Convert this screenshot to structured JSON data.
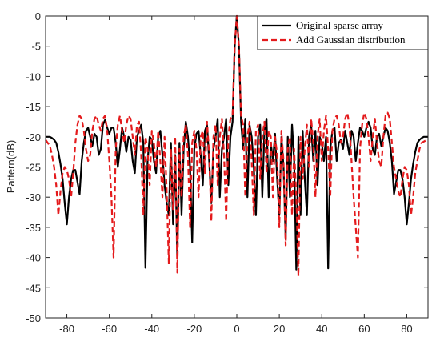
{
  "chart_data": {
    "type": "line",
    "ylabel": "Pattern(dB)",
    "x": [
      -90,
      -89,
      -88,
      -87,
      -86,
      -85,
      -84,
      -83,
      -82,
      -81,
      -80,
      -79,
      -78,
      -77,
      -76,
      -75,
      -74,
      -73,
      -72,
      -71,
      -70,
      -69,
      -68,
      -67,
      -66,
      -65,
      -64,
      -63,
      -62,
      -61,
      -60,
      -59,
      -58,
      -57,
      -56,
      -55,
      -54,
      -53,
      -52,
      -51,
      -50,
      -49,
      -48,
      -47,
      -46,
      -45,
      -44,
      -43,
      -42,
      -41,
      -40,
      -39,
      -38,
      -37,
      -36,
      -35,
      -34,
      -33,
      -32,
      -31,
      -30,
      -29,
      -28,
      -27,
      -26,
      -25,
      -24,
      -23,
      -22,
      -21,
      -20,
      -19,
      -18,
      -17,
      -16,
      -15,
      -14,
      -13,
      -12,
      -11,
      -10,
      -9,
      -8,
      -7,
      -6,
      -5,
      -4,
      -3,
      -2,
      -1,
      0,
      1,
      2,
      3,
      4,
      5,
      6,
      7,
      8,
      9,
      10,
      11,
      12,
      13,
      14,
      15,
      16,
      17,
      18,
      19,
      20,
      21,
      22,
      23,
      24,
      25,
      26,
      27,
      28,
      29,
      30,
      31,
      32,
      33,
      34,
      35,
      36,
      37,
      38,
      39,
      40,
      41,
      42,
      43,
      44,
      45,
      46,
      47,
      48,
      49,
      50,
      51,
      52,
      53,
      54,
      55,
      56,
      57,
      58,
      59,
      60,
      61,
      62,
      63,
      64,
      65,
      66,
      67,
      68,
      69,
      70,
      71,
      72,
      73,
      74,
      75,
      76,
      77,
      78,
      79,
      80,
      81,
      82,
      83,
      84,
      85,
      86,
      87,
      88,
      89,
      90
    ],
    "series": [
      {
        "name": "Original sparse array",
        "color": "#000000",
        "linestyle": "solid",
        "values": [
          -20,
          -20,
          -20,
          -20.2,
          -20.5,
          -21,
          -22.5,
          -24.5,
          -27,
          -31,
          -34.5,
          -30,
          -27,
          -25.5,
          -25.5,
          -27.5,
          -29.5,
          -24,
          -21,
          -19,
          -18.5,
          -20,
          -21.5,
          -19.5,
          -20,
          -23,
          -22,
          -18,
          -17.2,
          -18.5,
          -19.5,
          -18.5,
          -18.5,
          -21,
          -25,
          -22,
          -18.5,
          -20,
          -22.5,
          -20,
          -20.5,
          -24,
          -26,
          -20,
          -19,
          -18,
          -21,
          -41.7,
          -24,
          -20,
          -20.5,
          -24,
          -26,
          -20,
          -19,
          -23,
          -28,
          -31,
          -33,
          -21,
          -34.5,
          -23,
          -40,
          -21,
          -33,
          -22,
          -17.5,
          -20,
          -25,
          -37.5,
          -22,
          -19.5,
          -19,
          -23,
          -28,
          -19,
          -18,
          -24,
          -31,
          -22,
          -20,
          -17,
          -30,
          -22,
          -20,
          -17,
          -28,
          -20,
          -17.5,
          -5,
          0,
          -5,
          -17.5,
          -22,
          -17,
          -30,
          -18,
          -20,
          -25,
          -33,
          -20,
          -18,
          -30,
          -19,
          -17,
          -30,
          -21,
          -24,
          -19.5,
          -27,
          -33,
          -20,
          -25,
          -37,
          -20,
          -30,
          -18,
          -24,
          -42,
          -20,
          -33,
          -19,
          -27,
          -33,
          -20,
          -18,
          -24,
          -19,
          -28,
          -20,
          -21,
          -24,
          -20,
          -41.8,
          -22,
          -19,
          -18.5,
          -24,
          -21,
          -20.5,
          -22,
          -19,
          -21,
          -23,
          -19,
          -20,
          -24,
          -21,
          -18.5,
          -19,
          -20,
          -18.5,
          -17.5,
          -18.5,
          -22,
          -23,
          -20,
          -19.5,
          -21.5,
          -20,
          -18.5,
          -19,
          -21,
          -24,
          -29.5,
          -27.5,
          -25.5,
          -25.5,
          -27,
          -30,
          -34.5,
          -31,
          -27,
          -24.5,
          -22.5,
          -21,
          -20.5,
          -20.2,
          -20,
          -20,
          -20
        ]
      },
      {
        "name": "Add Gaussian distribution",
        "color": "#e41a1c",
        "linestyle": "dashed",
        "values": [
          -20.5,
          -21,
          -21.5,
          -23,
          -25,
          -28,
          -33,
          -29,
          -26,
          -25,
          -25.5,
          -27,
          -30,
          -26,
          -21,
          -18,
          -16.5,
          -17,
          -19,
          -22,
          -24,
          -23,
          -19,
          -17,
          -16.5,
          -18,
          -19,
          -17,
          -16.5,
          -19,
          -24,
          -30,
          -40,
          -22,
          -18,
          -16.5,
          -19,
          -21,
          -18,
          -16.5,
          -17,
          -20,
          -23,
          -18,
          -17.5,
          -23,
          -33,
          -20,
          -22,
          -28,
          -19,
          -21,
          -25,
          -19,
          -24,
          -30,
          -20,
          -29,
          -41,
          -22,
          -32,
          -20,
          -42.5,
          -22,
          -30,
          -20,
          -18,
          -23,
          -35,
          -21,
          -19,
          -22,
          -30,
          -20,
          -19,
          -26,
          -17.5,
          -23,
          -34,
          -20,
          -18,
          -28,
          -20,
          -17,
          -23,
          -34,
          -20,
          -17,
          -16.5,
          -5,
          0,
          -5,
          -16.5,
          -18,
          -30,
          -20,
          -17.5,
          -24,
          -33,
          -19,
          -18,
          -27,
          -20,
          -17.5,
          -26,
          -19,
          -20,
          -30,
          -20,
          -23,
          -35,
          -19,
          -24,
          -38,
          -22,
          -20,
          -33,
          -22,
          -30,
          -43,
          -20,
          -27,
          -22,
          -18,
          -25,
          -17,
          -21,
          -30,
          -20,
          -17,
          -24,
          -19,
          -16.5,
          -22,
          -30,
          -19,
          -17,
          -16.5,
          -18,
          -21,
          -20,
          -17,
          -16,
          -18,
          -24,
          -30,
          -35,
          -40,
          -22,
          -18,
          -16,
          -17,
          -20,
          -24,
          -20,
          -17,
          -21,
          -24,
          -25,
          -20,
          -16.5,
          -16,
          -17,
          -21,
          -25,
          -27,
          -29,
          -30,
          -27,
          -25,
          -25.5,
          -28,
          -33,
          -30,
          -26,
          -24,
          -22,
          -21,
          -20.8,
          -20.6,
          -20.5
        ]
      }
    ],
    "xlim": [
      -90,
      90
    ],
    "xticks": [
      -80,
      -60,
      -40,
      -20,
      0,
      20,
      40,
      60,
      80
    ],
    "ylim": [
      -50,
      0
    ],
    "yticks": [
      0,
      -5,
      -10,
      -15,
      -20,
      -25,
      -30,
      -35,
      -40,
      -45,
      -50
    ],
    "legend": "upper right"
  }
}
